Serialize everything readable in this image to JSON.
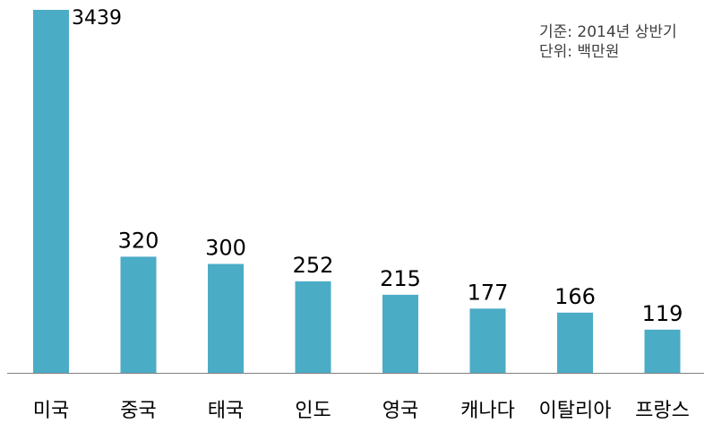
{
  "chart_data": {
    "type": "bar",
    "title": "",
    "xlabel": "",
    "ylabel": "",
    "categories": [
      "미국",
      "중국",
      "태국",
      "인도",
      "영국",
      "캐나다",
      "이탈리아",
      "프랑스"
    ],
    "values": [
      3439,
      320,
      300,
      252,
      215,
      177,
      166,
      119
    ],
    "value_labels": [
      "3439",
      "320",
      "300",
      "252",
      "215",
      "177",
      "166",
      "119"
    ],
    "annotations": [
      "기준: 2014년 상반기",
      "단위: 백만원"
    ],
    "grid": false,
    "legend": "none"
  },
  "colors": {
    "bar": "#4BACC6",
    "axis": "#808080",
    "text": "#000000",
    "note_text": "#404040"
  }
}
